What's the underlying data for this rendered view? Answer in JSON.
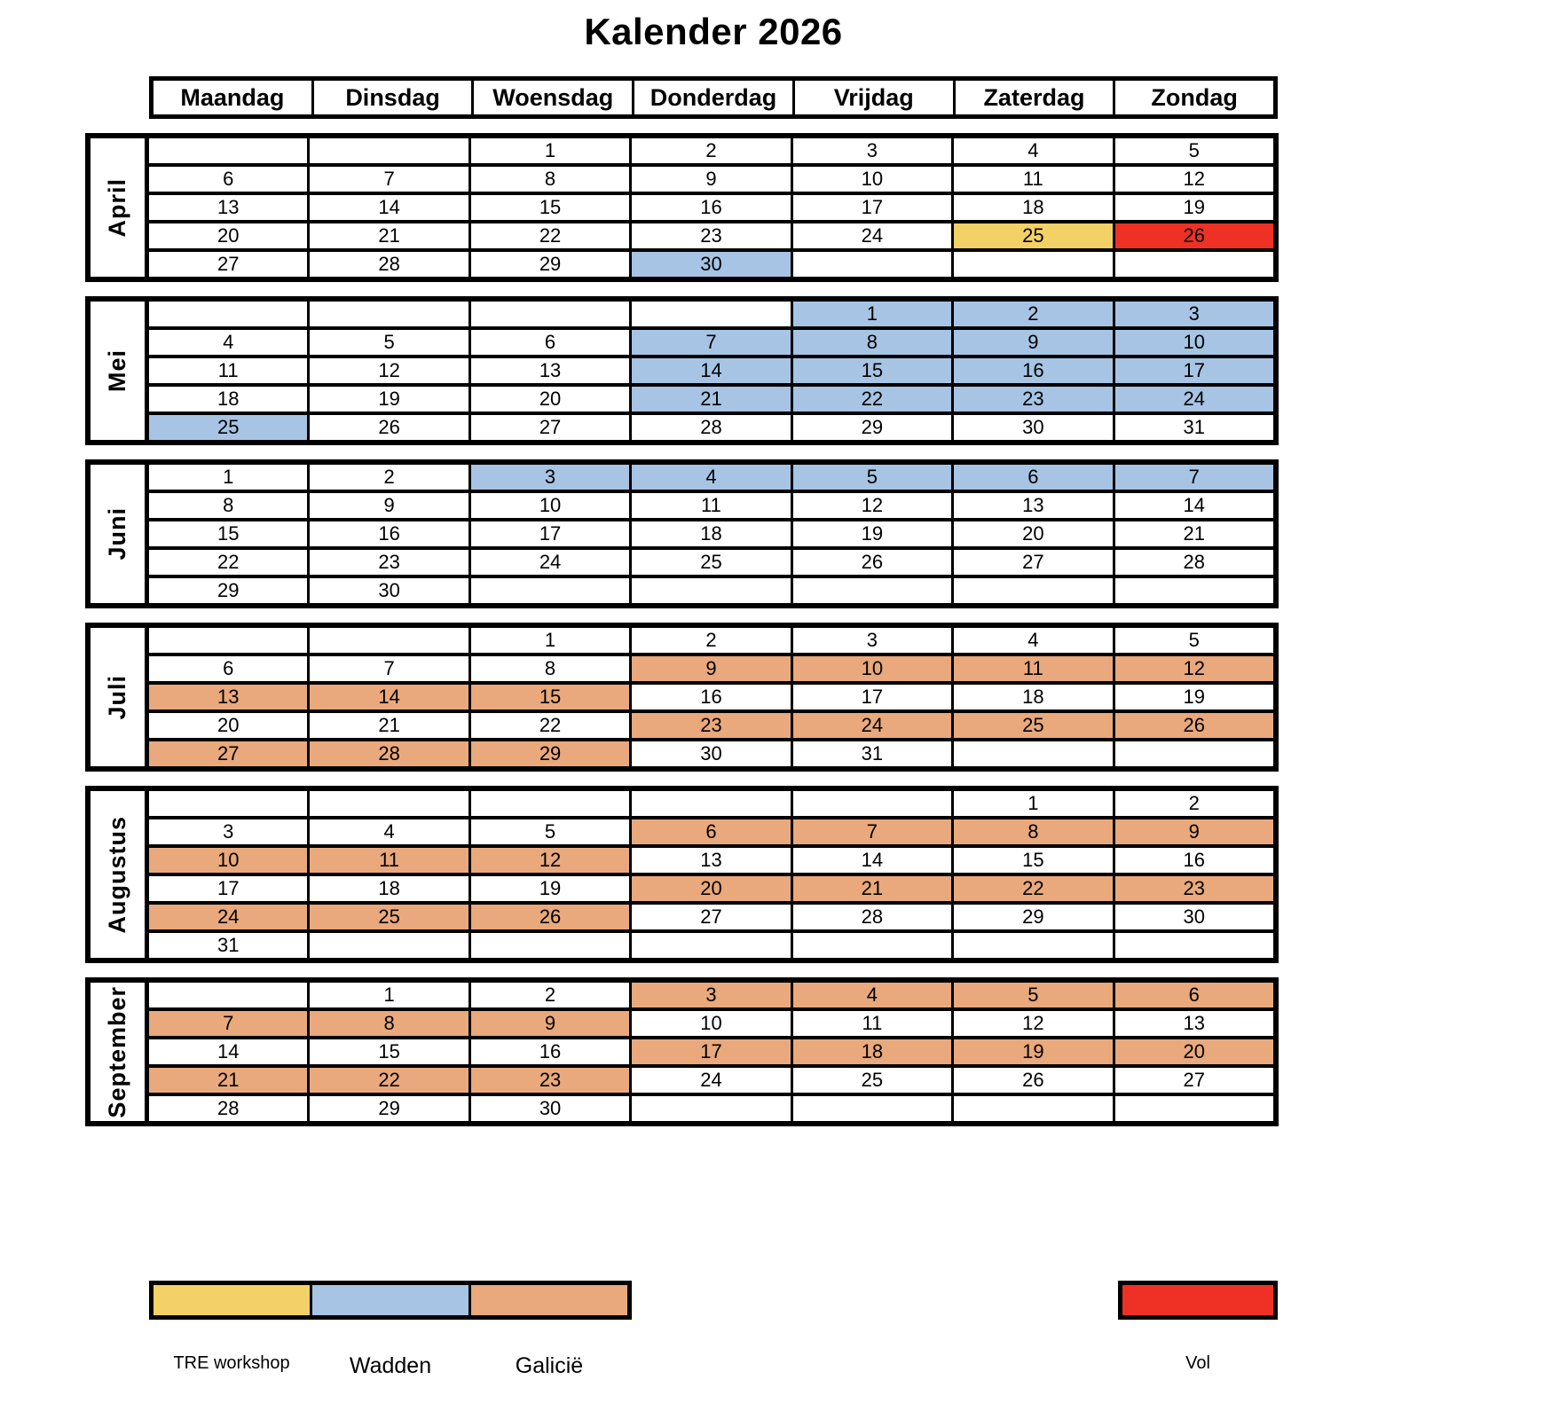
{
  "title": "Kalender 2026",
  "weekdays": [
    "Maandag",
    "Dinsdag",
    "Woensdag",
    "Donderdag",
    "Vrijdag",
    "Zaterdag",
    "Zondag"
  ],
  "colors": {
    "yellow": "#F4D166",
    "blue": "#A7C4E4",
    "orange": "#E9A97C",
    "red": "#EE3124",
    "border": "#000000",
    "background": "#FFFFFF"
  },
  "months": [
    {
      "name": "April",
      "weeks": [
        [
          [
            "",
            ""
          ],
          [
            "",
            ""
          ],
          [
            "1",
            ""
          ],
          [
            "2",
            ""
          ],
          [
            "3",
            ""
          ],
          [
            "4",
            ""
          ],
          [
            "5",
            ""
          ]
        ],
        [
          [
            "6",
            ""
          ],
          [
            "7",
            ""
          ],
          [
            "8",
            ""
          ],
          [
            "9",
            ""
          ],
          [
            "10",
            ""
          ],
          [
            "11",
            ""
          ],
          [
            "12",
            ""
          ]
        ],
        [
          [
            "13",
            ""
          ],
          [
            "14",
            ""
          ],
          [
            "15",
            ""
          ],
          [
            "16",
            ""
          ],
          [
            "17",
            ""
          ],
          [
            "18",
            ""
          ],
          [
            "19",
            ""
          ]
        ],
        [
          [
            "20",
            ""
          ],
          [
            "21",
            ""
          ],
          [
            "22",
            ""
          ],
          [
            "23",
            ""
          ],
          [
            "24",
            ""
          ],
          [
            "25",
            "yellow"
          ],
          [
            "26",
            "red"
          ]
        ],
        [
          [
            "27",
            ""
          ],
          [
            "28",
            ""
          ],
          [
            "29",
            ""
          ],
          [
            "30",
            "blue"
          ],
          [
            "",
            ""
          ],
          [
            "",
            ""
          ],
          [
            "",
            ""
          ]
        ]
      ]
    },
    {
      "name": "Mei",
      "weeks": [
        [
          [
            "",
            ""
          ],
          [
            "",
            ""
          ],
          [
            "",
            ""
          ],
          [
            "",
            ""
          ],
          [
            "1",
            "blue"
          ],
          [
            "2",
            "blue"
          ],
          [
            "3",
            "blue"
          ]
        ],
        [
          [
            "4",
            ""
          ],
          [
            "5",
            ""
          ],
          [
            "6",
            ""
          ],
          [
            "7",
            "blue"
          ],
          [
            "8",
            "blue"
          ],
          [
            "9",
            "blue"
          ],
          [
            "10",
            "blue"
          ]
        ],
        [
          [
            "11",
            ""
          ],
          [
            "12",
            ""
          ],
          [
            "13",
            ""
          ],
          [
            "14",
            "blue"
          ],
          [
            "15",
            "blue"
          ],
          [
            "16",
            "blue"
          ],
          [
            "17",
            "blue"
          ]
        ],
        [
          [
            "18",
            ""
          ],
          [
            "19",
            ""
          ],
          [
            "20",
            ""
          ],
          [
            "21",
            "blue"
          ],
          [
            "22",
            "blue"
          ],
          [
            "23",
            "blue"
          ],
          [
            "24",
            "blue"
          ]
        ],
        [
          [
            "25",
            "blue"
          ],
          [
            "26",
            ""
          ],
          [
            "27",
            ""
          ],
          [
            "28",
            ""
          ],
          [
            "29",
            ""
          ],
          [
            "30",
            ""
          ],
          [
            "31",
            ""
          ]
        ]
      ]
    },
    {
      "name": "Juni",
      "weeks": [
        [
          [
            "1",
            ""
          ],
          [
            "2",
            ""
          ],
          [
            "3",
            "blue"
          ],
          [
            "4",
            "blue"
          ],
          [
            "5",
            "blue"
          ],
          [
            "6",
            "blue"
          ],
          [
            "7",
            "blue"
          ]
        ],
        [
          [
            "8",
            ""
          ],
          [
            "9",
            ""
          ],
          [
            "10",
            ""
          ],
          [
            "11",
            ""
          ],
          [
            "12",
            ""
          ],
          [
            "13",
            ""
          ],
          [
            "14",
            ""
          ]
        ],
        [
          [
            "15",
            ""
          ],
          [
            "16",
            ""
          ],
          [
            "17",
            ""
          ],
          [
            "18",
            ""
          ],
          [
            "19",
            ""
          ],
          [
            "20",
            ""
          ],
          [
            "21",
            ""
          ]
        ],
        [
          [
            "22",
            ""
          ],
          [
            "23",
            ""
          ],
          [
            "24",
            ""
          ],
          [
            "25",
            ""
          ],
          [
            "26",
            ""
          ],
          [
            "27",
            ""
          ],
          [
            "28",
            ""
          ]
        ],
        [
          [
            "29",
            ""
          ],
          [
            "30",
            ""
          ],
          [
            "",
            ""
          ],
          [
            "",
            ""
          ],
          [
            "",
            ""
          ],
          [
            "",
            ""
          ],
          [
            "",
            ""
          ]
        ]
      ]
    },
    {
      "name": "Juli",
      "weeks": [
        [
          [
            "",
            ""
          ],
          [
            "",
            ""
          ],
          [
            "1",
            ""
          ],
          [
            "2",
            ""
          ],
          [
            "3",
            ""
          ],
          [
            "4",
            ""
          ],
          [
            "5",
            ""
          ]
        ],
        [
          [
            "6",
            ""
          ],
          [
            "7",
            ""
          ],
          [
            "8",
            ""
          ],
          [
            "9",
            "orange"
          ],
          [
            "10",
            "orange"
          ],
          [
            "11",
            "orange"
          ],
          [
            "12",
            "orange"
          ]
        ],
        [
          [
            "13",
            "orange"
          ],
          [
            "14",
            "orange"
          ],
          [
            "15",
            "orange"
          ],
          [
            "16",
            ""
          ],
          [
            "17",
            ""
          ],
          [
            "18",
            ""
          ],
          [
            "19",
            ""
          ]
        ],
        [
          [
            "20",
            ""
          ],
          [
            "21",
            ""
          ],
          [
            "22",
            ""
          ],
          [
            "23",
            "orange"
          ],
          [
            "24",
            "orange"
          ],
          [
            "25",
            "orange"
          ],
          [
            "26",
            "orange"
          ]
        ],
        [
          [
            "27",
            "orange"
          ],
          [
            "28",
            "orange"
          ],
          [
            "29",
            "orange"
          ],
          [
            "30",
            ""
          ],
          [
            "31",
            ""
          ],
          [
            "",
            ""
          ],
          [
            "",
            ""
          ]
        ]
      ]
    },
    {
      "name": "Augustus",
      "weeks": [
        [
          [
            "",
            ""
          ],
          [
            "",
            ""
          ],
          [
            "",
            ""
          ],
          [
            "",
            ""
          ],
          [
            "",
            ""
          ],
          [
            "1",
            ""
          ],
          [
            "2",
            ""
          ]
        ],
        [
          [
            "3",
            ""
          ],
          [
            "4",
            ""
          ],
          [
            "5",
            ""
          ],
          [
            "6",
            "orange"
          ],
          [
            "7",
            "orange"
          ],
          [
            "8",
            "orange"
          ],
          [
            "9",
            "orange"
          ]
        ],
        [
          [
            "10",
            "orange"
          ],
          [
            "11",
            "orange"
          ],
          [
            "12",
            "orange"
          ],
          [
            "13",
            ""
          ],
          [
            "14",
            ""
          ],
          [
            "15",
            ""
          ],
          [
            "16",
            ""
          ]
        ],
        [
          [
            "17",
            ""
          ],
          [
            "18",
            ""
          ],
          [
            "19",
            ""
          ],
          [
            "20",
            "orange"
          ],
          [
            "21",
            "orange"
          ],
          [
            "22",
            "orange"
          ],
          [
            "23",
            "orange"
          ]
        ],
        [
          [
            "24",
            "orange"
          ],
          [
            "25",
            "orange"
          ],
          [
            "26",
            "orange"
          ],
          [
            "27",
            ""
          ],
          [
            "28",
            ""
          ],
          [
            "29",
            ""
          ],
          [
            "30",
            ""
          ]
        ],
        [
          [
            "31",
            ""
          ],
          [
            "",
            ""
          ],
          [
            "",
            ""
          ],
          [
            "",
            ""
          ],
          [
            "",
            ""
          ],
          [
            "",
            ""
          ],
          [
            "",
            ""
          ]
        ]
      ]
    },
    {
      "name": "September",
      "weeks": [
        [
          [
            "",
            ""
          ],
          [
            "1",
            ""
          ],
          [
            "2",
            ""
          ],
          [
            "3",
            "orange"
          ],
          [
            "4",
            "orange"
          ],
          [
            "5",
            "orange"
          ],
          [
            "6",
            "orange"
          ]
        ],
        [
          [
            "7",
            "orange"
          ],
          [
            "8",
            "orange"
          ],
          [
            "9",
            "orange"
          ],
          [
            "10",
            ""
          ],
          [
            "11",
            ""
          ],
          [
            "12",
            ""
          ],
          [
            "13",
            ""
          ]
        ],
        [
          [
            "14",
            ""
          ],
          [
            "15",
            ""
          ],
          [
            "16",
            ""
          ],
          [
            "17",
            "orange"
          ],
          [
            "18",
            "orange"
          ],
          [
            "19",
            "orange"
          ],
          [
            "20",
            "orange"
          ]
        ],
        [
          [
            "21",
            "orange"
          ],
          [
            "22",
            "orange"
          ],
          [
            "23",
            "orange"
          ],
          [
            "24",
            ""
          ],
          [
            "25",
            ""
          ],
          [
            "26",
            ""
          ],
          [
            "27",
            ""
          ]
        ],
        [
          [
            "28",
            ""
          ],
          [
            "29",
            ""
          ],
          [
            "30",
            ""
          ],
          [
            "",
            ""
          ],
          [
            "",
            ""
          ],
          [
            "",
            ""
          ],
          [
            "",
            ""
          ]
        ]
      ]
    }
  ],
  "legend": {
    "items": [
      {
        "label": "TRE workshop",
        "color": "yellow"
      },
      {
        "label": "Wadden",
        "color": "blue"
      },
      {
        "label": "Galicië",
        "color": "orange"
      }
    ],
    "vol": {
      "label": "Vol",
      "color": "red"
    }
  }
}
